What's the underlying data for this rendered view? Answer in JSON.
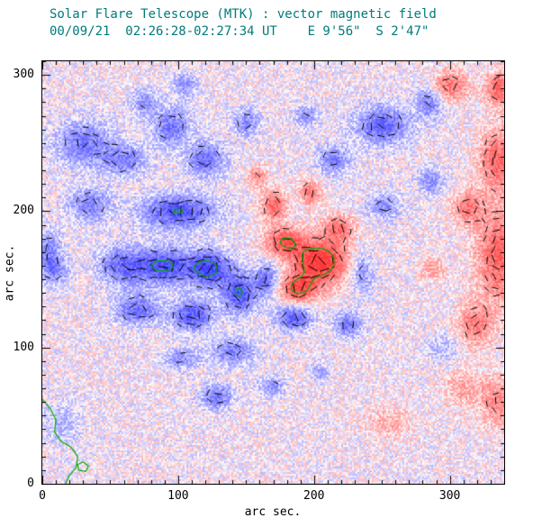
{
  "header": {
    "title": "Solar Flare Telescope (MTK) : vector magnetic field",
    "subtitle": "00/09/21  02:26:28-02:27:34 UT    E 9'56\"  S 2'47\""
  },
  "axes": {
    "x": {
      "label": "arc sec.",
      "ticks": [
        0,
        100,
        200,
        300
      ],
      "range": [
        0,
        340
      ],
      "minor_step": 10
    },
    "y": {
      "label": "arc sec.",
      "ticks": [
        0,
        100,
        200,
        300
      ],
      "range": [
        0,
        310
      ],
      "minor_step": 10
    }
  },
  "colors": {
    "title": "#007a7a",
    "axis": "#000000",
    "contour": "#00aa00",
    "vector": "#000000",
    "positive_polarity": "#ff4040",
    "negative_polarity": "#5a5aff",
    "background": "#ffffff"
  },
  "chart_data": {
    "type": "heatmap",
    "title": "Solar Flare Telescope (MTK) : vector magnetic field",
    "subtitle": "00/09/21  02:26:28-02:27:34 UT    E 9'56\"  S 2'47\"",
    "xlabel": "arc sec.",
    "ylabel": "arc sec.",
    "x_range": [
      0,
      340
    ],
    "y_range": [
      0,
      310
    ],
    "legend": "none",
    "grid": false,
    "description": "Vector magnetogram: red = positive line-of-sight field, blue = negative; short black bars = transverse field vectors; green = strong-field contours.",
    "blob_format": "[x_arcsec, y_arcsec, sigma_x, sigma_y, signed_amplitude]",
    "blobs": [
      [
        30,
        250,
        20,
        16,
        -0.55
      ],
      [
        35,
        205,
        16,
        12,
        -0.5
      ],
      [
        60,
        238,
        16,
        12,
        -0.5
      ],
      [
        95,
        262,
        14,
        14,
        -0.55
      ],
      [
        105,
        293,
        10,
        8,
        -0.4
      ],
      [
        75,
        280,
        10,
        10,
        -0.4
      ],
      [
        120,
        238,
        14,
        12,
        -0.6
      ],
      [
        100,
        200,
        26,
        12,
        -0.8
      ],
      [
        5,
        170,
        8,
        16,
        -0.45
      ],
      [
        60,
        160,
        18,
        14,
        -0.65
      ],
      [
        90,
        160,
        18,
        13,
        -0.8
      ],
      [
        122,
        158,
        16,
        13,
        -0.9
      ],
      [
        70,
        128,
        16,
        11,
        -0.6
      ],
      [
        110,
        124,
        15,
        11,
        -0.75
      ],
      [
        145,
        140,
        12,
        14,
        -0.8
      ],
      [
        165,
        150,
        8,
        12,
        -0.6
      ],
      [
        185,
        122,
        13,
        9,
        -0.7
      ],
      [
        225,
        117,
        10,
        9,
        -0.55
      ],
      [
        235,
        155,
        8,
        14,
        -0.45
      ],
      [
        140,
        97,
        16,
        10,
        -0.5
      ],
      [
        103,
        92,
        13,
        8,
        -0.4
      ],
      [
        128,
        64,
        12,
        9,
        -0.55
      ],
      [
        168,
        72,
        10,
        7,
        -0.4
      ],
      [
        204,
        82,
        6,
        6,
        -0.35
      ],
      [
        150,
        265,
        10,
        10,
        -0.45
      ],
      [
        194,
        270,
        8,
        8,
        -0.4
      ],
      [
        214,
        238,
        12,
        10,
        -0.5
      ],
      [
        250,
        263,
        20,
        14,
        -0.65
      ],
      [
        252,
        204,
        12,
        9,
        -0.45
      ],
      [
        286,
        222,
        9,
        9,
        -0.45
      ],
      [
        285,
        280,
        10,
        12,
        -0.5
      ],
      [
        10,
        157,
        10,
        10,
        -0.4
      ],
      [
        15,
        45,
        12,
        16,
        -0.25
      ],
      [
        295,
        100,
        12,
        10,
        -0.25
      ],
      [
        204,
        163,
        20,
        17,
        1.05
      ],
      [
        178,
        178,
        14,
        11,
        0.75
      ],
      [
        188,
        143,
        13,
        10,
        0.8
      ],
      [
        218,
        188,
        11,
        9,
        0.6
      ],
      [
        170,
        205,
        9,
        11,
        0.65
      ],
      [
        197,
        214,
        8,
        9,
        0.55
      ],
      [
        158,
        226,
        7,
        7,
        0.45
      ],
      [
        336,
        168,
        16,
        34,
        0.7
      ],
      [
        336,
        238,
        14,
        22,
        0.65
      ],
      [
        318,
        117,
        13,
        16,
        0.5
      ],
      [
        336,
        60,
        13,
        18,
        0.45
      ],
      [
        313,
        203,
        11,
        12,
        0.55
      ],
      [
        300,
        292,
        13,
        11,
        0.6
      ],
      [
        336,
        290,
        10,
        13,
        0.65
      ],
      [
        287,
        158,
        9,
        9,
        0.35
      ],
      [
        255,
        45,
        18,
        12,
        0.25
      ],
      [
        310,
        70,
        16,
        14,
        0.3
      ]
    ],
    "contour_level": 0.78,
    "vector_threshold": 0.3,
    "vector_grid_step": 7,
    "noise_amp": 0.22,
    "seed": 42,
    "extra_contours": [
      [
        [
          0,
          62
        ],
        [
          6,
          55
        ],
        [
          10,
          47
        ],
        [
          9,
          38
        ],
        [
          14,
          31
        ],
        [
          21,
          27
        ],
        [
          26,
          20
        ],
        [
          25,
          12
        ],
        [
          20,
          6
        ],
        [
          17,
          0
        ]
      ],
      [
        [
          30,
          16
        ],
        [
          34,
          13
        ],
        [
          32,
          9
        ],
        [
          27,
          10
        ],
        [
          26,
          14
        ],
        [
          30,
          16
        ]
      ]
    ]
  }
}
